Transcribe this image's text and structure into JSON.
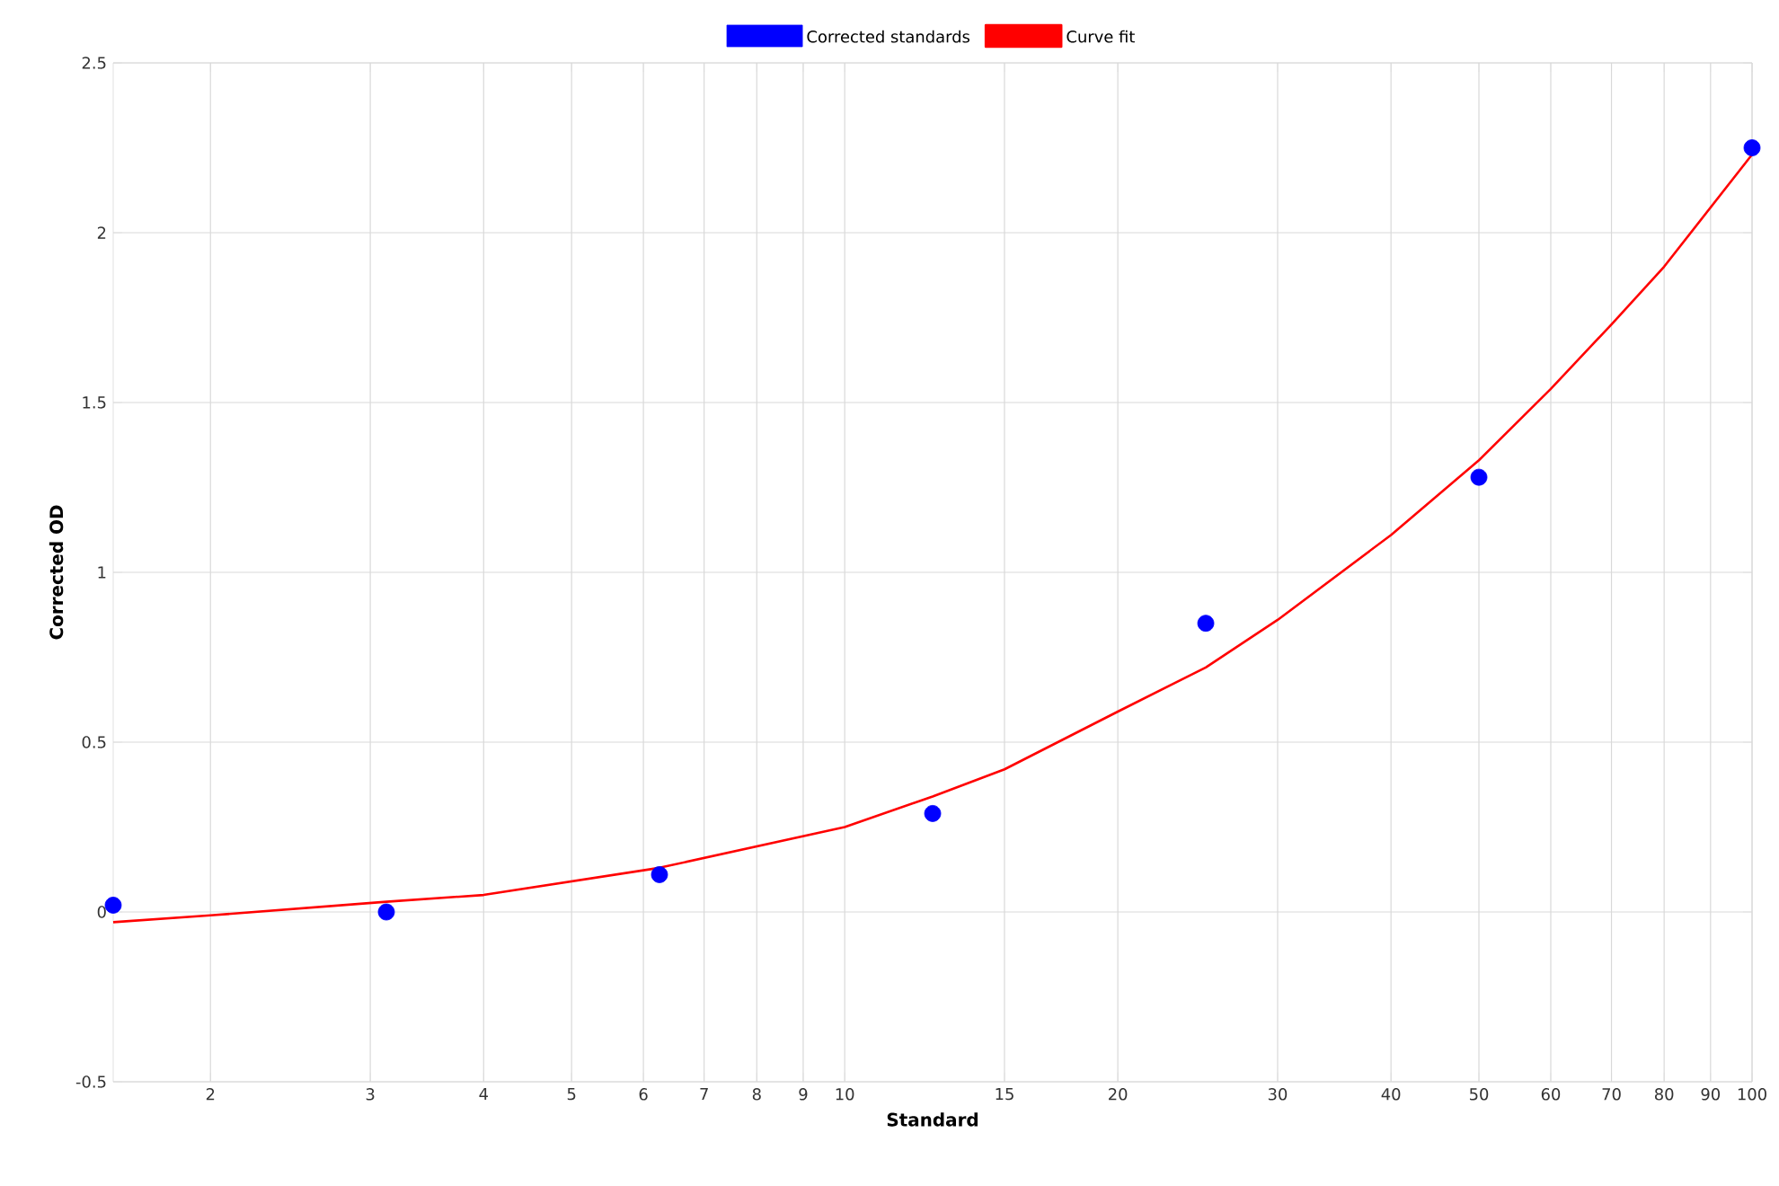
{
  "chart_data": {
    "type": "scatter",
    "xlabel": "Standard",
    "ylabel": "Corrected OD",
    "log": "x",
    "grid": true,
    "legend": "top",
    "xlim": [
      1.5625,
      100
    ],
    "ylim": [
      -0.5,
      2.5
    ],
    "xticks": [
      2,
      3,
      4,
      5,
      6,
      7,
      8,
      9,
      10,
      15,
      20,
      30,
      40,
      50,
      60,
      70,
      80,
      90,
      100
    ],
    "yticks": [
      -0.5,
      0,
      0.5,
      1,
      1.5,
      2,
      2.5
    ],
    "series": [
      {
        "name": "Corrected standards",
        "marker": "circle",
        "color": "#0000ff",
        "x": [
          1.5625,
          3.125,
          6.25,
          12.5,
          25,
          50,
          100
        ],
        "values": [
          0.02,
          0.0,
          0.11,
          0.29,
          0.85,
          1.28,
          2.25
        ]
      },
      {
        "name": "Curve fit",
        "type": "line",
        "color": "#ff0000",
        "x": [
          1.5625,
          2,
          3.125,
          4,
          6.25,
          10,
          12.5,
          15,
          20,
          25,
          30,
          40,
          50,
          60,
          70,
          80,
          100
        ],
        "values": [
          -0.03,
          -0.01,
          0.03,
          0.05,
          0.13,
          0.25,
          0.34,
          0.42,
          0.59,
          0.72,
          0.86,
          1.11,
          1.33,
          1.54,
          1.73,
          1.9,
          2.23
        ]
      }
    ]
  }
}
